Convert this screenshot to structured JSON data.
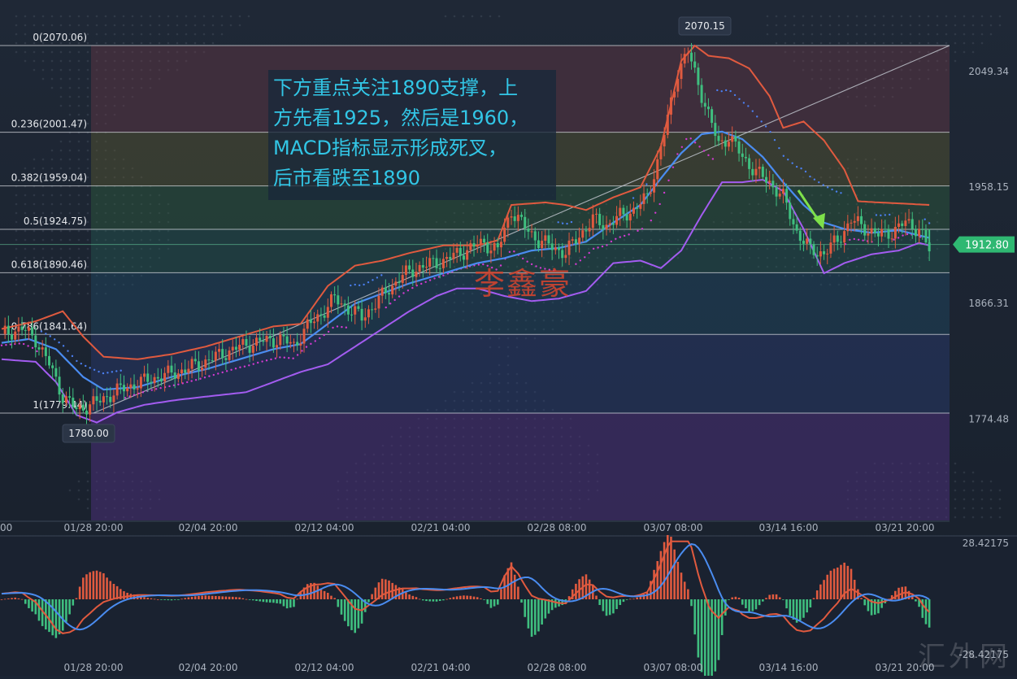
{
  "annotation_text": [
    "下方重点关注1890支撑，上",
    "方先看1925，然后是1960，",
    "MACD指标显示形成死叉，",
    "后市看跌至1890"
  ],
  "watermark_author": "李鑫豪",
  "watermark_site": "汇外网",
  "colors": {
    "up_candle": "#e05a3f",
    "down_candle": "#3fbf7f",
    "bb_upper": "#e05a3f",
    "bb_lower": "#a35cf0",
    "bb_mid": "#4a8cf0",
    "macd_line": "#e05a3f",
    "signal_line": "#4a8cf0",
    "trendline": "#bfc4cc",
    "annotation_text": "#32c6e6",
    "price_tag": "#2fb872",
    "arrow": "#7ee04a"
  },
  "chart_data": {
    "type": "candlestick",
    "symbol_note": "gold price chart with Fibonacci retracement, Bollinger Bands and MACD",
    "price_axis": {
      "ticks": [
        "2049.34",
        "1958.15",
        "1866.31",
        "1774.48"
      ],
      "tick_values": [
        2049.34,
        1958.15,
        1866.31,
        1774.48
      ],
      "range": [
        1740,
        2080
      ]
    },
    "time_axis_labels": [
      "01/28 20:00",
      "02/04 20:00",
      "02/12 04:00",
      "02/21 04:00",
      "02/28 08:00",
      "03/07 08:00",
      "03/14 16:00",
      "03/21 20:00"
    ],
    "time_axis_partial_left": "00",
    "fib_levels": [
      {
        "label": "0(2070.06)",
        "value": 2070.06
      },
      {
        "label": "0.236(2001.47)",
        "value": 2001.47
      },
      {
        "label": "0.382(1959.04)",
        "value": 1959.04
      },
      {
        "label": "0.5(1924.75)",
        "value": 1924.75
      },
      {
        "label": "0.618(1890.46)",
        "value": 1890.46
      },
      {
        "label": "0.786(1841.64)",
        "value": 1841.64
      },
      {
        "label": "1(1779.44)",
        "value": 1779.44
      }
    ],
    "high_label": "2070.15",
    "low_label": "1780.00",
    "current_price_label": "1912.80",
    "current_price": 1912.8,
    "close_path": [
      [
        0,
        1842
      ],
      [
        6,
        1846
      ],
      [
        10,
        1838
      ],
      [
        14,
        1818
      ],
      [
        18,
        1793
      ],
      [
        22,
        1782
      ],
      [
        28,
        1788
      ],
      [
        34,
        1797
      ],
      [
        40,
        1803
      ],
      [
        46,
        1808
      ],
      [
        52,
        1812
      ],
      [
        58,
        1818
      ],
      [
        64,
        1825
      ],
      [
        70,
        1832
      ],
      [
        76,
        1836
      ],
      [
        82,
        1838
      ],
      [
        86,
        1833
      ],
      [
        90,
        1848
      ],
      [
        94,
        1858
      ],
      [
        98,
        1870
      ],
      [
        102,
        1862
      ],
      [
        106,
        1855
      ],
      [
        110,
        1866
      ],
      [
        114,
        1878
      ],
      [
        118,
        1888
      ],
      [
        122,
        1894
      ],
      [
        126,
        1897
      ],
      [
        130,
        1900
      ],
      [
        134,
        1905
      ],
      [
        138,
        1910
      ],
      [
        142,
        1914
      ],
      [
        146,
        1908
      ],
      [
        150,
        1940
      ],
      [
        154,
        1926
      ],
      [
        158,
        1916
      ],
      [
        162,
        1911
      ],
      [
        166,
        1906
      ],
      [
        170,
        1920
      ],
      [
        174,
        1932
      ],
      [
        178,
        1928
      ],
      [
        182,
        1935
      ],
      [
        186,
        1940
      ],
      [
        190,
        1950
      ],
      [
        193,
        1978
      ],
      [
        196,
        2012
      ],
      [
        199,
        2050
      ],
      [
        202,
        2065
      ],
      [
        205,
        2040
      ],
      [
        208,
        2015
      ],
      [
        211,
        1992
      ],
      [
        214,
        1998
      ],
      [
        218,
        1982
      ],
      [
        222,
        1970
      ],
      [
        226,
        1962
      ],
      [
        230,
        1950
      ],
      [
        234,
        1923
      ],
      [
        238,
        1908
      ],
      [
        242,
        1906
      ],
      [
        246,
        1916
      ],
      [
        250,
        1932
      ],
      [
        254,
        1926
      ],
      [
        258,
        1920
      ],
      [
        262,
        1923
      ],
      [
        266,
        1930
      ],
      [
        270,
        1925
      ],
      [
        273,
        1908
      ]
    ],
    "bollinger_upper": [
      [
        0,
        1846
      ],
      [
        10,
        1852
      ],
      [
        18,
        1860
      ],
      [
        24,
        1840
      ],
      [
        30,
        1824
      ],
      [
        40,
        1822
      ],
      [
        50,
        1826
      ],
      [
        60,
        1832
      ],
      [
        70,
        1840
      ],
      [
        80,
        1848
      ],
      [
        88,
        1850
      ],
      [
        96,
        1880
      ],
      [
        104,
        1896
      ],
      [
        112,
        1900
      ],
      [
        120,
        1906
      ],
      [
        130,
        1912
      ],
      [
        140,
        1912
      ],
      [
        146,
        1916
      ],
      [
        150,
        1944
      ],
      [
        160,
        1946
      ],
      [
        166,
        1944
      ],
      [
        172,
        1940
      ],
      [
        180,
        1950
      ],
      [
        188,
        1958
      ],
      [
        194,
        1990
      ],
      [
        200,
        2058
      ],
      [
        204,
        2070
      ],
      [
        208,
        2062
      ],
      [
        214,
        2060
      ],
      [
        220,
        2052
      ],
      [
        226,
        2030
      ],
      [
        230,
        2005
      ],
      [
        236,
        2010
      ],
      [
        242,
        1995
      ],
      [
        248,
        1972
      ],
      [
        252,
        1947
      ],
      [
        258,
        1946
      ],
      [
        266,
        1945
      ],
      [
        273,
        1944
      ]
    ],
    "bollinger_middle": [
      [
        0,
        1835
      ],
      [
        8,
        1838
      ],
      [
        16,
        1830
      ],
      [
        24,
        1808
      ],
      [
        30,
        1798
      ],
      [
        40,
        1800
      ],
      [
        50,
        1808
      ],
      [
        60,
        1814
      ],
      [
        70,
        1822
      ],
      [
        80,
        1830
      ],
      [
        88,
        1834
      ],
      [
        96,
        1850
      ],
      [
        104,
        1866
      ],
      [
        112,
        1874
      ],
      [
        120,
        1882
      ],
      [
        130,
        1890
      ],
      [
        140,
        1898
      ],
      [
        148,
        1902
      ],
      [
        156,
        1908
      ],
      [
        164,
        1910
      ],
      [
        172,
        1915
      ],
      [
        180,
        1930
      ],
      [
        188,
        1944
      ],
      [
        194,
        1965
      ],
      [
        200,
        1985
      ],
      [
        206,
        2000
      ],
      [
        212,
        2002
      ],
      [
        218,
        1996
      ],
      [
        224,
        1982
      ],
      [
        230,
        1962
      ],
      [
        236,
        1944
      ],
      [
        242,
        1930
      ],
      [
        248,
        1925
      ],
      [
        256,
        1922
      ],
      [
        264,
        1924
      ],
      [
        273,
        1918
      ]
    ],
    "bollinger_lower": [
      [
        0,
        1822
      ],
      [
        10,
        1820
      ],
      [
        16,
        1804
      ],
      [
        22,
        1778
      ],
      [
        28,
        1772
      ],
      [
        34,
        1780
      ],
      [
        42,
        1786
      ],
      [
        52,
        1790
      ],
      [
        62,
        1793
      ],
      [
        72,
        1796
      ],
      [
        82,
        1806
      ],
      [
        88,
        1812
      ],
      [
        96,
        1818
      ],
      [
        104,
        1832
      ],
      [
        112,
        1846
      ],
      [
        120,
        1860
      ],
      [
        128,
        1872
      ],
      [
        134,
        1878
      ],
      [
        140,
        1878
      ],
      [
        148,
        1872
      ],
      [
        156,
        1868
      ],
      [
        164,
        1870
      ],
      [
        172,
        1876
      ],
      [
        180,
        1898
      ],
      [
        188,
        1900
      ],
      [
        194,
        1894
      ],
      [
        200,
        1908
      ],
      [
        206,
        1936
      ],
      [
        212,
        1962
      ],
      [
        218,
        1962
      ],
      [
        224,
        1964
      ],
      [
        230,
        1955
      ],
      [
        236,
        1925
      ],
      [
        242,
        1890
      ],
      [
        248,
        1898
      ],
      [
        256,
        1905
      ],
      [
        264,
        1908
      ],
      [
        270,
        1914
      ],
      [
        273,
        1912
      ]
    ],
    "macd_axis": {
      "top": "28.42175",
      "bottom": "-28.42175",
      "top_value": 28.42175,
      "bottom_value": -28.42175
    }
  }
}
